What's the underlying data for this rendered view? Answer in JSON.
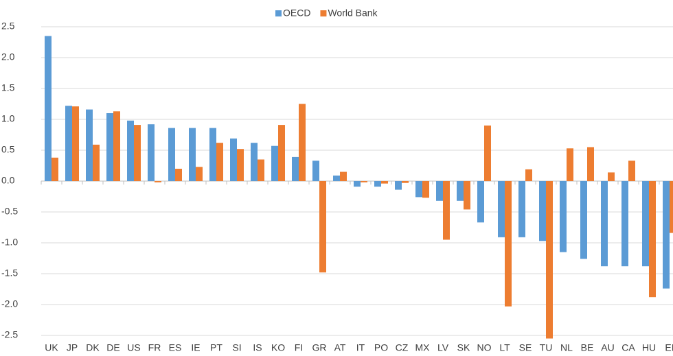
{
  "chart_data": {
    "type": "bar",
    "categories": [
      "UK",
      "JP",
      "DK",
      "DE",
      "US",
      "FR",
      "ES",
      "IE",
      "PT",
      "SI",
      "IS",
      "KO",
      "FI",
      "GR",
      "AT",
      "IT",
      "PO",
      "CZ",
      "MX",
      "LV",
      "SK",
      "NO",
      "LT",
      "SE",
      "TU",
      "NL",
      "BE",
      "AU",
      "CA",
      "HU",
      "EI"
    ],
    "series": [
      {
        "name": "OECD",
        "color": "#5b9bd5",
        "values": [
          2.35,
          1.22,
          1.16,
          1.1,
          0.98,
          0.92,
          0.86,
          0.86,
          0.86,
          0.69,
          0.62,
          0.57,
          0.39,
          0.33,
          0.09,
          -0.09,
          -0.09,
          -0.14,
          -0.26,
          -0.32,
          -0.32,
          -0.67,
          -0.91,
          -0.91,
          -0.97,
          -1.15,
          -1.26,
          -1.38,
          -1.38,
          -1.38,
          -1.74
        ]
      },
      {
        "name": "World Bank",
        "color": "#ed7d31",
        "values": [
          0.38,
          1.21,
          0.59,
          1.13,
          0.91,
          -0.02,
          0.2,
          0.23,
          0.62,
          0.52,
          0.35,
          0.91,
          1.25,
          -1.48,
          0.15,
          -0.02,
          -0.04,
          -0.03,
          -0.27,
          -0.95,
          -0.46,
          0.9,
          -2.03,
          0.19,
          -2.55,
          0.53,
          0.55,
          0.14,
          0.33,
          -1.88,
          -0.84
        ]
      }
    ],
    "ylim": [
      -2.5,
      2.5
    ],
    "yticks": [
      2.5,
      {
        "value": 2,
        "label": "2.0"
      },
      1.5,
      {
        "value": 1,
        "label": "1.0"
      },
      0.5,
      {
        "value": 0,
        "label": "0.0"
      },
      -0.5,
      {
        "value": -1,
        "label": "-1.0"
      },
      -1.5,
      {
        "value": -2,
        "label": "-2.0"
      },
      -2.5
    ],
    "grid": true,
    "legend": "top"
  }
}
